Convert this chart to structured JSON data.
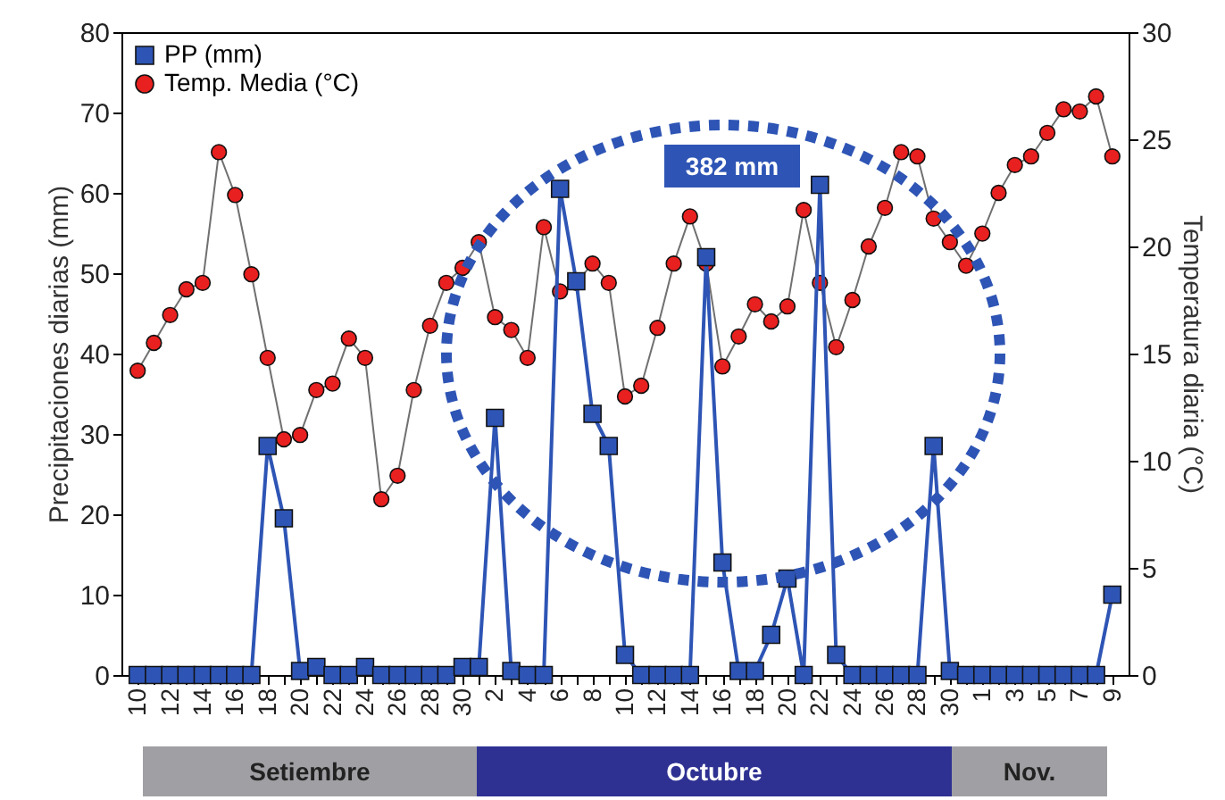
{
  "chart_data": {
    "type": "line",
    "xlabel": null,
    "ylabel": "Precipitaciones diarias (mm)",
    "y2label": "Temperatura diaria (°C)",
    "categories": [
      "10",
      null,
      "12",
      null,
      "14",
      null,
      "16",
      null,
      "18",
      null,
      "20",
      null,
      "22",
      null,
      "24",
      null,
      "26",
      null,
      "28",
      null,
      "30",
      null,
      "2",
      null,
      "4",
      null,
      "6",
      null,
      "8",
      null,
      "10",
      null,
      "12",
      null,
      "14",
      null,
      "16",
      null,
      "18",
      null,
      "20",
      null,
      "22",
      null,
      "24",
      null,
      "26",
      null,
      "28",
      null,
      "30",
      null,
      "1",
      null,
      "3",
      null,
      "5",
      null,
      "7",
      null,
      "9"
    ],
    "series": [
      {
        "name": "PP (mm)",
        "color": "#2e55b5",
        "marker": "square",
        "values": [
          0,
          0,
          0,
          0,
          0,
          0,
          0,
          0,
          28.5,
          19.5,
          0.5,
          1,
          0,
          0,
          1,
          0,
          0,
          0,
          0,
          0,
          1,
          1,
          32,
          0.5,
          0,
          0,
          60.5,
          49,
          32.5,
          28.5,
          2.5,
          0,
          0,
          0,
          0,
          52,
          14,
          0.5,
          0.5,
          5,
          12,
          0,
          61,
          2.5,
          0,
          0,
          0,
          0,
          0,
          28.5,
          0.5,
          0,
          0,
          0,
          0,
          0,
          0,
          0,
          0,
          0,
          10
        ]
      },
      {
        "name": "Temp. Media (°C)",
        "color": "#e8201f",
        "axis": "y2",
        "marker": "circle",
        "values": [
          14.2,
          15.5,
          16.8,
          18.0,
          18.3,
          24.4,
          22.4,
          18.7,
          14.8,
          11.0,
          11.2,
          13.3,
          13.6,
          15.7,
          14.8,
          8.2,
          9.3,
          13.3,
          16.3,
          18.3,
          19.0,
          20.2,
          16.7,
          16.1,
          14.8,
          20.9,
          17.9,
          18.3,
          19.2,
          18.3,
          13.0,
          13.5,
          16.2,
          19.2,
          21.4,
          19.2,
          14.4,
          15.8,
          17.3,
          16.5,
          17.2,
          21.7,
          18.3,
          15.3,
          17.5,
          20.0,
          21.8,
          24.4,
          24.2,
          21.3,
          20.2,
          19.1,
          20.6,
          22.5,
          23.8,
          24.2,
          25.3,
          26.4,
          26.3,
          27.0,
          24.2
        ]
      }
    ],
    "ylim": [
      0,
      80
    ],
    "yticks": [
      0,
      10,
      20,
      30,
      40,
      50,
      60,
      70,
      80
    ],
    "y2lim": [
      0,
      30
    ],
    "y2ticks": [
      0,
      5,
      10,
      15,
      20,
      25,
      30
    ],
    "legend": "top left",
    "grid": false,
    "annotations": [
      "382 mm",
      "Setiembre",
      "Octubre",
      "Nov."
    ]
  }
}
